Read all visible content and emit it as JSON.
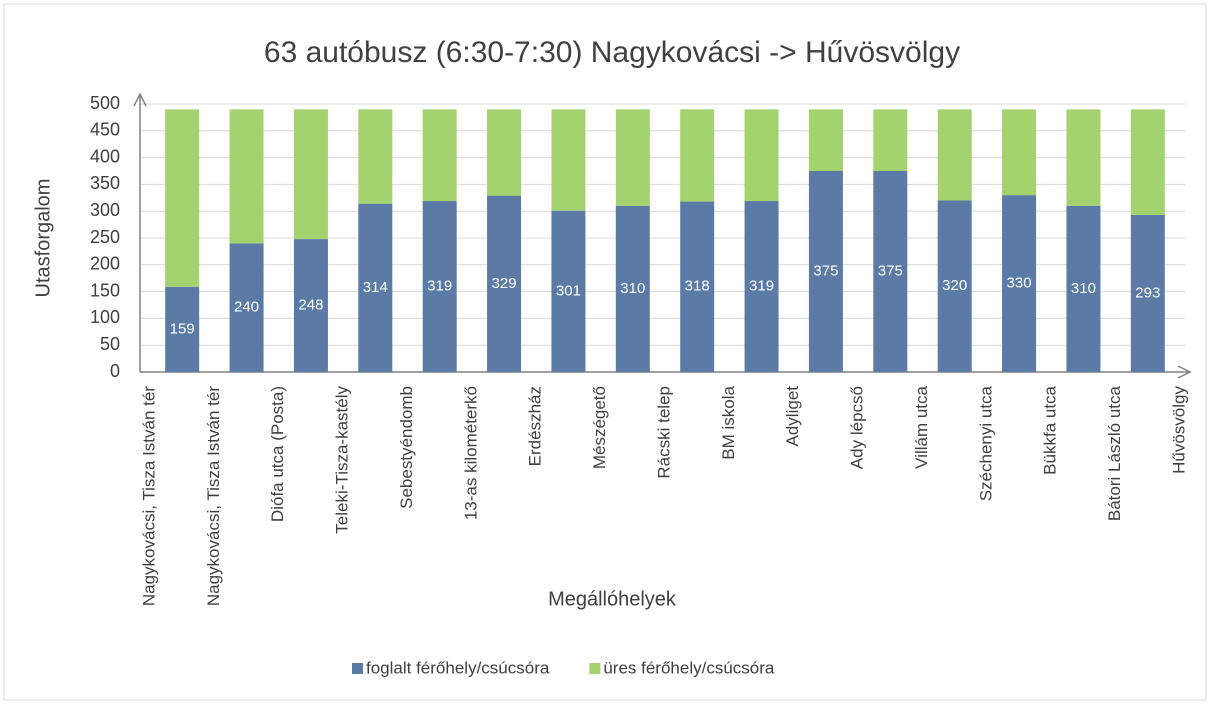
{
  "chart_data": {
    "type": "bar",
    "stacked": true,
    "title": "63 autóbusz (6:30-7:30) Nagykovácsi -> Hűvösvölgy",
    "xlabel": "Megállóhelyek",
    "ylabel": "Utasforgalom",
    "categories": [
      "Nagykovácsi, Tisza István tér",
      "Nagykovácsi, Tisza István tér",
      "Diófa utca (Posta)",
      "Teleki-Tisza-kastély",
      "Sebestyéndomb",
      "13-as kilométerkő",
      "Erdészház",
      "Mészégető",
      "Rácski telep",
      "BM iskola",
      "Adyliget",
      "Ady lépcső",
      "Villám utca",
      "Széchenyi utca",
      "Bükkfa utca",
      "Bátori László utca",
      "Hűvösvölgy"
    ],
    "series": [
      {
        "name": "foglalt férőhely/csúcsóra",
        "color": "#5b7ba6",
        "values": [
          159,
          240,
          248,
          314,
          319,
          329,
          301,
          310,
          318,
          319,
          375,
          375,
          320,
          330,
          310,
          293,
          null
        ]
      },
      {
        "name": "üres férőhely/csúcsóra",
        "color": "#a3d26f",
        "values": [
          331,
          250,
          242,
          176,
          171,
          161,
          189,
          180,
          172,
          171,
          115,
          115,
          170,
          160,
          180,
          197,
          null
        ]
      }
    ],
    "ylim": [
      0,
      500
    ],
    "yticks": [
      0,
      50,
      100,
      150,
      200,
      250,
      300,
      350,
      400,
      450,
      500
    ],
    "grid": true,
    "legend": "bottom"
  }
}
